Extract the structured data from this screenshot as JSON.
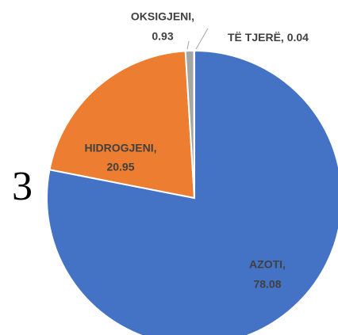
{
  "chart_data": {
    "type": "pie",
    "categories": [
      "AZOTI,",
      "HIDROGJENI,",
      "OKSIGJENI,",
      "TË TJERË,"
    ],
    "values": [
      78.08,
      20.95,
      0.93,
      0.04
    ],
    "colors": [
      "#4472c4",
      "#ed7d31",
      "#a5a5a5",
      "#9dc3e6"
    ],
    "figure_label": "3"
  }
}
